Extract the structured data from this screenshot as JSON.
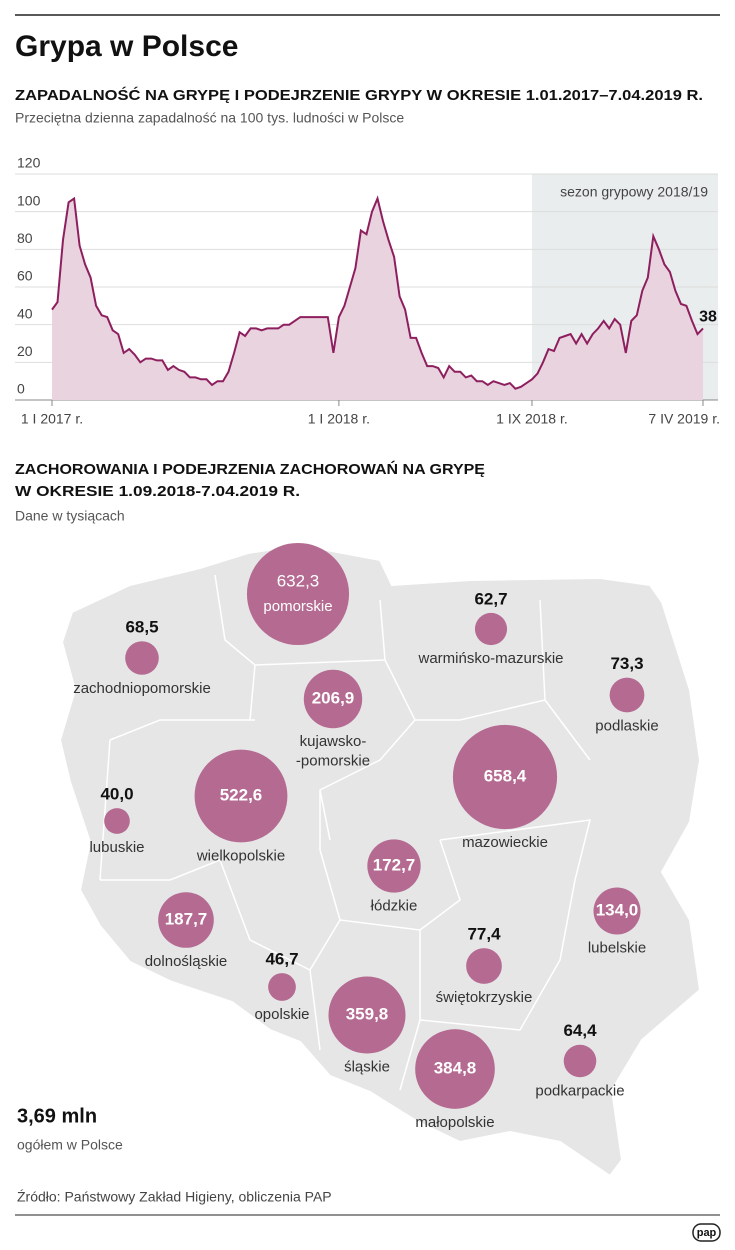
{
  "title": "Grypa w Polsce",
  "chart_data": [
    {
      "type": "area",
      "title": "ZAPADALNOŚĆ NA GRYPĘ I PODEJRZENIE GRYPY W OKRESIE 1.01.2017–7.04.2019 R.",
      "subtitle": "Przeciętna dzienna zapadalność na 100 tys. ludności w Polsce",
      "categories": [
        "1 I 2017 r.",
        null,
        null,
        null,
        null,
        null,
        null,
        null,
        null,
        null,
        null,
        null,
        null,
        null,
        null,
        null,
        null,
        null,
        null,
        null,
        null,
        null,
        null,
        null,
        null,
        null,
        null,
        null,
        null,
        null,
        null,
        null,
        null,
        null,
        null,
        null,
        null,
        null,
        null,
        null,
        null,
        null,
        null,
        null,
        null,
        null,
        null,
        null,
        null,
        null,
        null,
        null,
        "1 I 2018 r.",
        null,
        null,
        null,
        null,
        null,
        null,
        null,
        null,
        null,
        null,
        null,
        null,
        null,
        null,
        null,
        null,
        null,
        null,
        null,
        null,
        null,
        null,
        null,
        null,
        null,
        null,
        null,
        null,
        null,
        null,
        null,
        null,
        null,
        null,
        "1 IX 2018 r.",
        null,
        null,
        null,
        null,
        null,
        null,
        null,
        null,
        null,
        null,
        null,
        null,
        null,
        null,
        null,
        null,
        null,
        null,
        null,
        null,
        null,
        null,
        null,
        null,
        null,
        null,
        null,
        null,
        null,
        null,
        "7 IV 2019 r."
      ],
      "values": [
        48,
        52,
        85,
        105,
        107,
        82,
        72,
        65,
        50,
        45,
        44,
        37,
        35,
        25,
        27,
        24,
        20,
        22,
        22,
        21,
        21,
        16,
        18,
        16,
        15,
        12,
        12,
        11,
        11,
        8,
        10,
        10,
        15,
        25,
        36,
        34,
        38,
        38,
        37,
        38,
        38,
        38,
        40,
        40,
        42,
        44,
        44,
        44,
        44,
        44,
        44,
        25,
        44,
        50,
        60,
        70,
        90,
        88,
        100,
        107,
        95,
        85,
        76,
        55,
        48,
        33,
        33,
        25,
        18,
        18,
        17,
        12,
        18,
        15,
        15,
        12,
        13,
        10,
        10,
        8,
        10,
        9,
        8,
        9,
        6,
        7,
        9,
        11,
        14,
        20,
        27,
        26,
        33,
        34,
        35,
        30,
        35,
        30,
        35,
        38,
        42,
        38,
        43,
        40,
        25,
        42,
        45,
        58,
        65,
        87,
        80,
        72,
        68,
        58,
        51,
        50,
        42,
        35,
        38
      ],
      "color": "#8e1f5f",
      "fill": "#e8d3de",
      "ylim": [
        0,
        120
      ],
      "yticks": [
        0,
        20,
        40,
        60,
        80,
        100,
        120
      ],
      "grid": true,
      "annotation": {
        "text": "sezon grypowy 2018/19",
        "start": "1 IX 2018 r.",
        "color": "#e9eded"
      }
    },
    {
      "type": "bubble_map",
      "title": [
        "ZACHOROWANIA I PODEJRZENIA ZACHOROWAŃ NA GRYPĘ",
        "W OKRESIE 1.09.2018-7.04.2019 R."
      ],
      "subtitle": "Dane w tysiącach",
      "categories": [
        "zachodniopomorskie",
        "pomorskie",
        "warmińsko-mazurskie",
        "podlaskie",
        "kujawsko-\n-pomorskie",
        "wielkopolskie",
        "mazowieckie",
        "lubuskie",
        "łódzkie",
        "lubelskie",
        "dolnośląskie",
        "świętokrzyskie",
        "opolskie",
        "śląskie",
        "podkarpackie",
        "małopolskie"
      ],
      "values": [
        68.5,
        632.3,
        62.7,
        73.3,
        206.9,
        522.6,
        658.4,
        40.0,
        172.7,
        134.0,
        187.7,
        77.4,
        46.7,
        359.8,
        64.4,
        384.8
      ],
      "value_labels": [
        "68,5",
        "632,3",
        "62,7",
        "73,3",
        "206,9",
        "522,6",
        "658,4",
        "40,0",
        "172,7",
        "134,0",
        "187,7",
        "77,4",
        "46,7",
        "359,8",
        "64,4",
        "384,8"
      ],
      "color": "#b56b91"
    }
  ],
  "total": {
    "value": "3,69 mln",
    "label": "ogółem w Polsce"
  },
  "source": "Źródło: Państwowy Zakład Higieny, obliczenia PAP",
  "logo": "pap"
}
